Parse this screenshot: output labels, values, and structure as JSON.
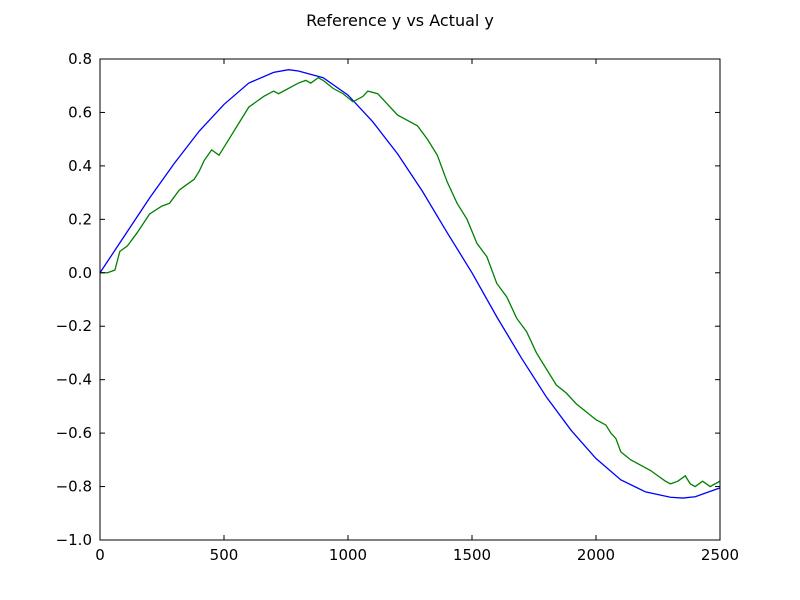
{
  "chart_data": {
    "type": "line",
    "title": "Reference y vs Actual y",
    "xlabel": "",
    "ylabel": "",
    "xlim": [
      0,
      2500
    ],
    "ylim": [
      -1.0,
      0.8
    ],
    "grid": false,
    "x_ticks": [
      0,
      500,
      1000,
      1500,
      2000,
      2500
    ],
    "x_tick_labels": [
      "0",
      "500",
      "1000",
      "1500",
      "2000",
      "2500"
    ],
    "y_ticks": [
      0.8,
      0.6,
      0.4,
      0.2,
      0.0,
      -0.2,
      -0.4,
      -0.6,
      -0.8,
      -1.0
    ],
    "y_tick_labels": [
      "0.8",
      "0.6",
      "0.4",
      "0.2",
      "0.0",
      "−0.2",
      "−0.4",
      "−0.6",
      "−0.8",
      "−1.0"
    ],
    "series": [
      {
        "color": "#0000ff",
        "x": [
          0,
          100,
          200,
          300,
          400,
          500,
          600,
          700,
          760,
          800,
          900,
          1000,
          1100,
          1200,
          1300,
          1400,
          1500,
          1600,
          1700,
          1800,
          1900,
          2000,
          2100,
          2200,
          2300,
          2350,
          2400,
          2500
        ],
        "y": [
          0.0,
          0.14,
          0.28,
          0.41,
          0.53,
          0.63,
          0.71,
          0.75,
          0.76,
          0.755,
          0.73,
          0.665,
          0.565,
          0.445,
          0.305,
          0.15,
          0.0,
          -0.165,
          -0.32,
          -0.465,
          -0.59,
          -0.695,
          -0.775,
          -0.82,
          -0.84,
          -0.843,
          -0.838,
          -0.805
        ]
      },
      {
        "color": "#008000",
        "x": [
          0,
          30,
          60,
          80,
          110,
          150,
          200,
          250,
          280,
          320,
          350,
          380,
          400,
          420,
          450,
          480,
          520,
          560,
          600,
          630,
          660,
          700,
          720,
          760,
          800,
          830,
          850,
          880,
          900,
          940,
          980,
          1020,
          1060,
          1080,
          1120,
          1160,
          1200,
          1240,
          1280,
          1320,
          1360,
          1400,
          1440,
          1480,
          1520,
          1560,
          1600,
          1640,
          1680,
          1720,
          1760,
          1800,
          1840,
          1880,
          1920,
          1960,
          2000,
          2040,
          2060,
          2080,
          2100,
          2140,
          2180,
          2220,
          2250,
          2280,
          2300,
          2330,
          2360,
          2380,
          2400,
          2430,
          2460,
          2480,
          2500
        ],
        "y": [
          0.0,
          0.0,
          0.01,
          0.08,
          0.1,
          0.15,
          0.22,
          0.25,
          0.26,
          0.31,
          0.33,
          0.35,
          0.38,
          0.42,
          0.46,
          0.44,
          0.5,
          0.56,
          0.62,
          0.64,
          0.66,
          0.68,
          0.67,
          0.69,
          0.71,
          0.72,
          0.71,
          0.73,
          0.72,
          0.69,
          0.67,
          0.64,
          0.66,
          0.68,
          0.67,
          0.63,
          0.59,
          0.57,
          0.55,
          0.5,
          0.44,
          0.34,
          0.26,
          0.2,
          0.11,
          0.06,
          -0.04,
          -0.09,
          -0.17,
          -0.22,
          -0.3,
          -0.36,
          -0.42,
          -0.45,
          -0.49,
          -0.52,
          -0.55,
          -0.57,
          -0.6,
          -0.62,
          -0.67,
          -0.7,
          -0.72,
          -0.74,
          -0.76,
          -0.78,
          -0.79,
          -0.78,
          -0.76,
          -0.79,
          -0.8,
          -0.78,
          -0.8,
          -0.79,
          -0.78
        ]
      }
    ]
  }
}
